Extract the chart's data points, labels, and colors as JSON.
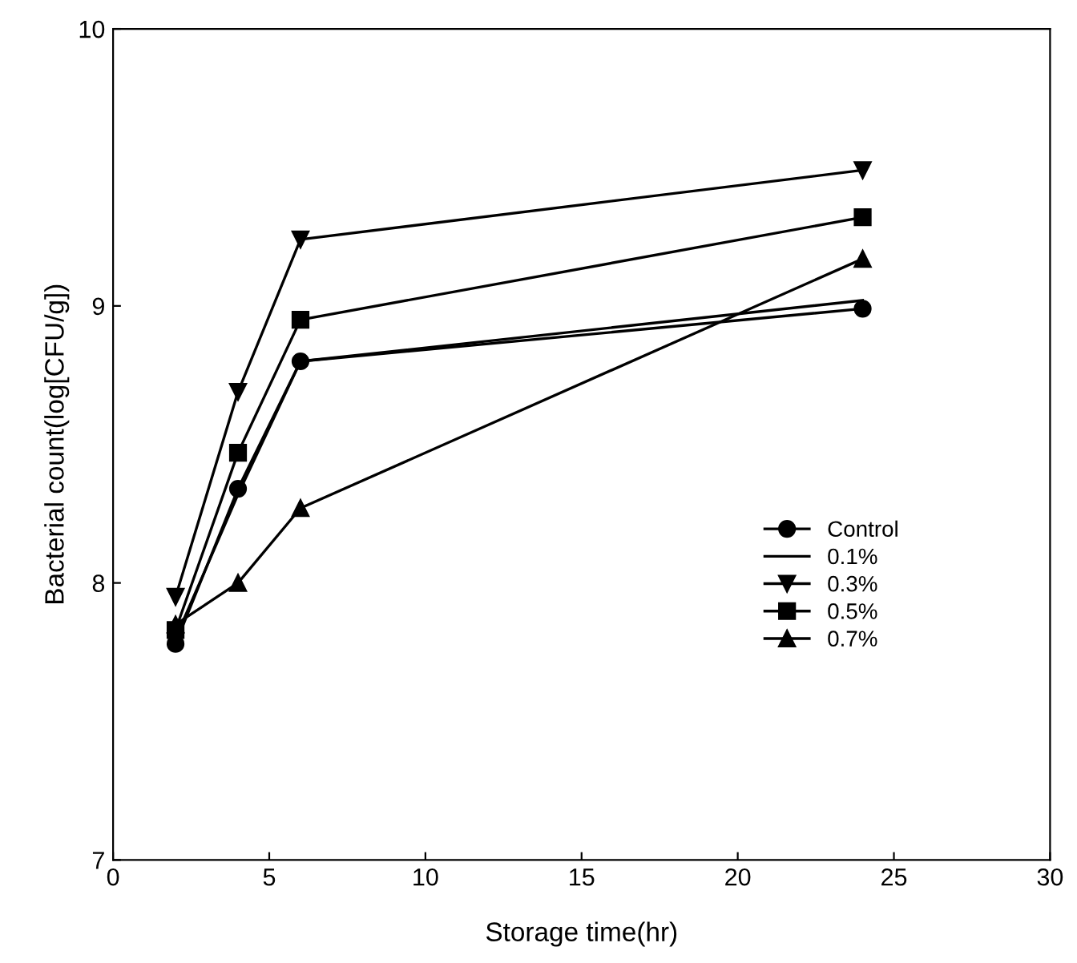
{
  "chart_data": {
    "type": "line",
    "xlabel": "Storage time(hr)",
    "ylabel": "Bacterial count(log[CFU/g])",
    "x": [
      2,
      4,
      6,
      24
    ],
    "series": [
      {
        "name": "Control",
        "color": "#000000",
        "marker": "circle",
        "values": [
          7.78,
          8.34,
          8.8,
          8.99
        ]
      },
      {
        "name": "0.1%",
        "color": "#000000",
        "marker": "none",
        "values": [
          7.8,
          8.32,
          8.8,
          9.02
        ]
      },
      {
        "name": "0.3%",
        "color": "#000000",
        "marker": "triangle_down",
        "values": [
          7.95,
          8.69,
          9.24,
          9.49
        ]
      },
      {
        "name": "0.5%",
        "color": "#000000",
        "marker": "square",
        "values": [
          7.83,
          8.47,
          8.95,
          9.32
        ]
      },
      {
        "name": "0.7%",
        "color": "#000000",
        "marker": "triangle",
        "values": [
          7.85,
          8.0,
          8.27,
          9.17
        ]
      }
    ],
    "xlim": [
      0,
      30
    ],
    "xticks": [
      0,
      5,
      10,
      15,
      20,
      25,
      30
    ],
    "ylim": [
      7,
      10
    ],
    "yticks": [
      7,
      8,
      9,
      10
    ],
    "legend": "right",
    "grid": false,
    "line_style": "solid"
  }
}
